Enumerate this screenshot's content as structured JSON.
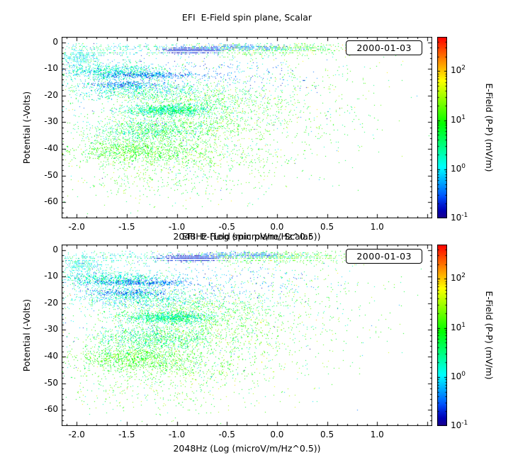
{
  "colors": {
    "background": "#ffffff",
    "foreground": "#000000"
  },
  "chart_data": [
    {
      "type": "scatter",
      "title": "EFI  E-Field spin plane, Scalar",
      "xlabel": "2048Hz (Log (microV/m/Hz^0.5))",
      "ylabel": "Potential (-Volts)",
      "date_label": "2000-01-03",
      "xlim": [
        -2.15,
        1.55
      ],
      "ylim": [
        -66,
        2
      ],
      "xticks": [
        -2.0,
        -1.5,
        -1.0,
        -0.5,
        0.0,
        0.5,
        1.0
      ],
      "xtick_labels": [
        "-2.0",
        "-1.5",
        "-1.0",
        "-0.5",
        "0.0",
        "0.5",
        "1.0"
      ],
      "yticks": [
        0,
        -10,
        -20,
        -30,
        -40,
        -50,
        -60
      ],
      "ytick_labels": [
        "0",
        "-10",
        "-20",
        "-30",
        "-40",
        "-50",
        "-60"
      ],
      "colorbar": {
        "label": "E-Field (P-P) (mV/m)",
        "scale": "log",
        "range_log10": [
          -1,
          2.7
        ],
        "tick_exponents": [
          -1,
          0,
          1,
          2
        ]
      },
      "seed": 20000103,
      "cluster_fields": [
        "count",
        "x_mean",
        "x_sd",
        "y_mean",
        "y_sd",
        "log10_value_mean",
        "log10_value_sd"
      ],
      "clusters": [
        [
          700,
          -0.1,
          0.42,
          -2.6,
          1.0,
          0.9,
          0.45
        ],
        [
          260,
          -1.6,
          0.38,
          -2.6,
          1.2,
          0.2,
          0.4
        ],
        [
          620,
          -0.85,
          0.14,
          -3.1,
          0.5,
          -0.75,
          0.15
        ],
        [
          260,
          -0.35,
          0.24,
          -2.0,
          0.5,
          -0.45,
          0.2
        ],
        [
          260,
          -1.95,
          0.1,
          -5.5,
          1.6,
          0.1,
          0.3
        ],
        [
          900,
          -1.65,
          0.3,
          -11.0,
          1.6,
          0.15,
          0.35
        ],
        [
          350,
          -1.3,
          0.26,
          -12.3,
          0.6,
          -0.5,
          0.2
        ],
        [
          300,
          -1.5,
          0.2,
          -16.0,
          0.7,
          -0.45,
          0.25
        ],
        [
          700,
          -1.4,
          0.36,
          -18.0,
          2.0,
          0.2,
          0.4
        ],
        [
          250,
          -0.5,
          0.5,
          -12.0,
          4.0,
          -0.3,
          0.3
        ],
        [
          900,
          -1.1,
          0.22,
          -25.5,
          1.1,
          0.35,
          0.3
        ],
        [
          800,
          -0.8,
          0.45,
          -23.0,
          3.5,
          0.9,
          0.45
        ],
        [
          800,
          -1.25,
          0.3,
          -33.0,
          2.2,
          0.55,
          0.45
        ],
        [
          500,
          -0.7,
          0.5,
          -32.0,
          3.5,
          1.1,
          0.35
        ],
        [
          900,
          -1.45,
          0.3,
          -40.5,
          2.5,
          1.0,
          0.3
        ],
        [
          500,
          -0.9,
          0.5,
          -43.0,
          3.0,
          1.05,
          0.35
        ],
        [
          350,
          -1.1,
          0.55,
          -52.0,
          4.5,
          1.0,
          0.4
        ],
        [
          300,
          0.3,
          0.45,
          -20.0,
          12.0,
          1.0,
          0.4
        ],
        [
          700,
          -1.0,
          0.8,
          -25.0,
          14.0,
          0.6,
          0.7
        ]
      ]
    },
    {
      "type": "scatter",
      "title": "EFI  E-Field spin plane, Scalar",
      "xlabel": "2048Hz (Log (microV/m/Hz^0.5))",
      "ylabel": "Potential (-Volts)",
      "date_label": "2000-01-03",
      "xlim": [
        -2.15,
        1.55
      ],
      "ylim": [
        -66,
        2
      ],
      "xticks": [
        -2.0,
        -1.5,
        -1.0,
        -0.5,
        0.0,
        0.5,
        1.0
      ],
      "xtick_labels": [
        "-2.0",
        "-1.5",
        "-1.0",
        "-0.5",
        "0.0",
        "0.5",
        "1.0"
      ],
      "yticks": [
        0,
        -10,
        -20,
        -30,
        -40,
        -50,
        -60
      ],
      "ytick_labels": [
        "0",
        "-10",
        "-20",
        "-30",
        "-40",
        "-50",
        "-60"
      ],
      "colorbar": {
        "label": "E-Field (P-P) (mV/m)",
        "scale": "log",
        "range_log10": [
          -1,
          2.7
        ],
        "tick_exponents": [
          -1,
          0,
          1,
          2
        ]
      },
      "seed": 20000104
    }
  ]
}
